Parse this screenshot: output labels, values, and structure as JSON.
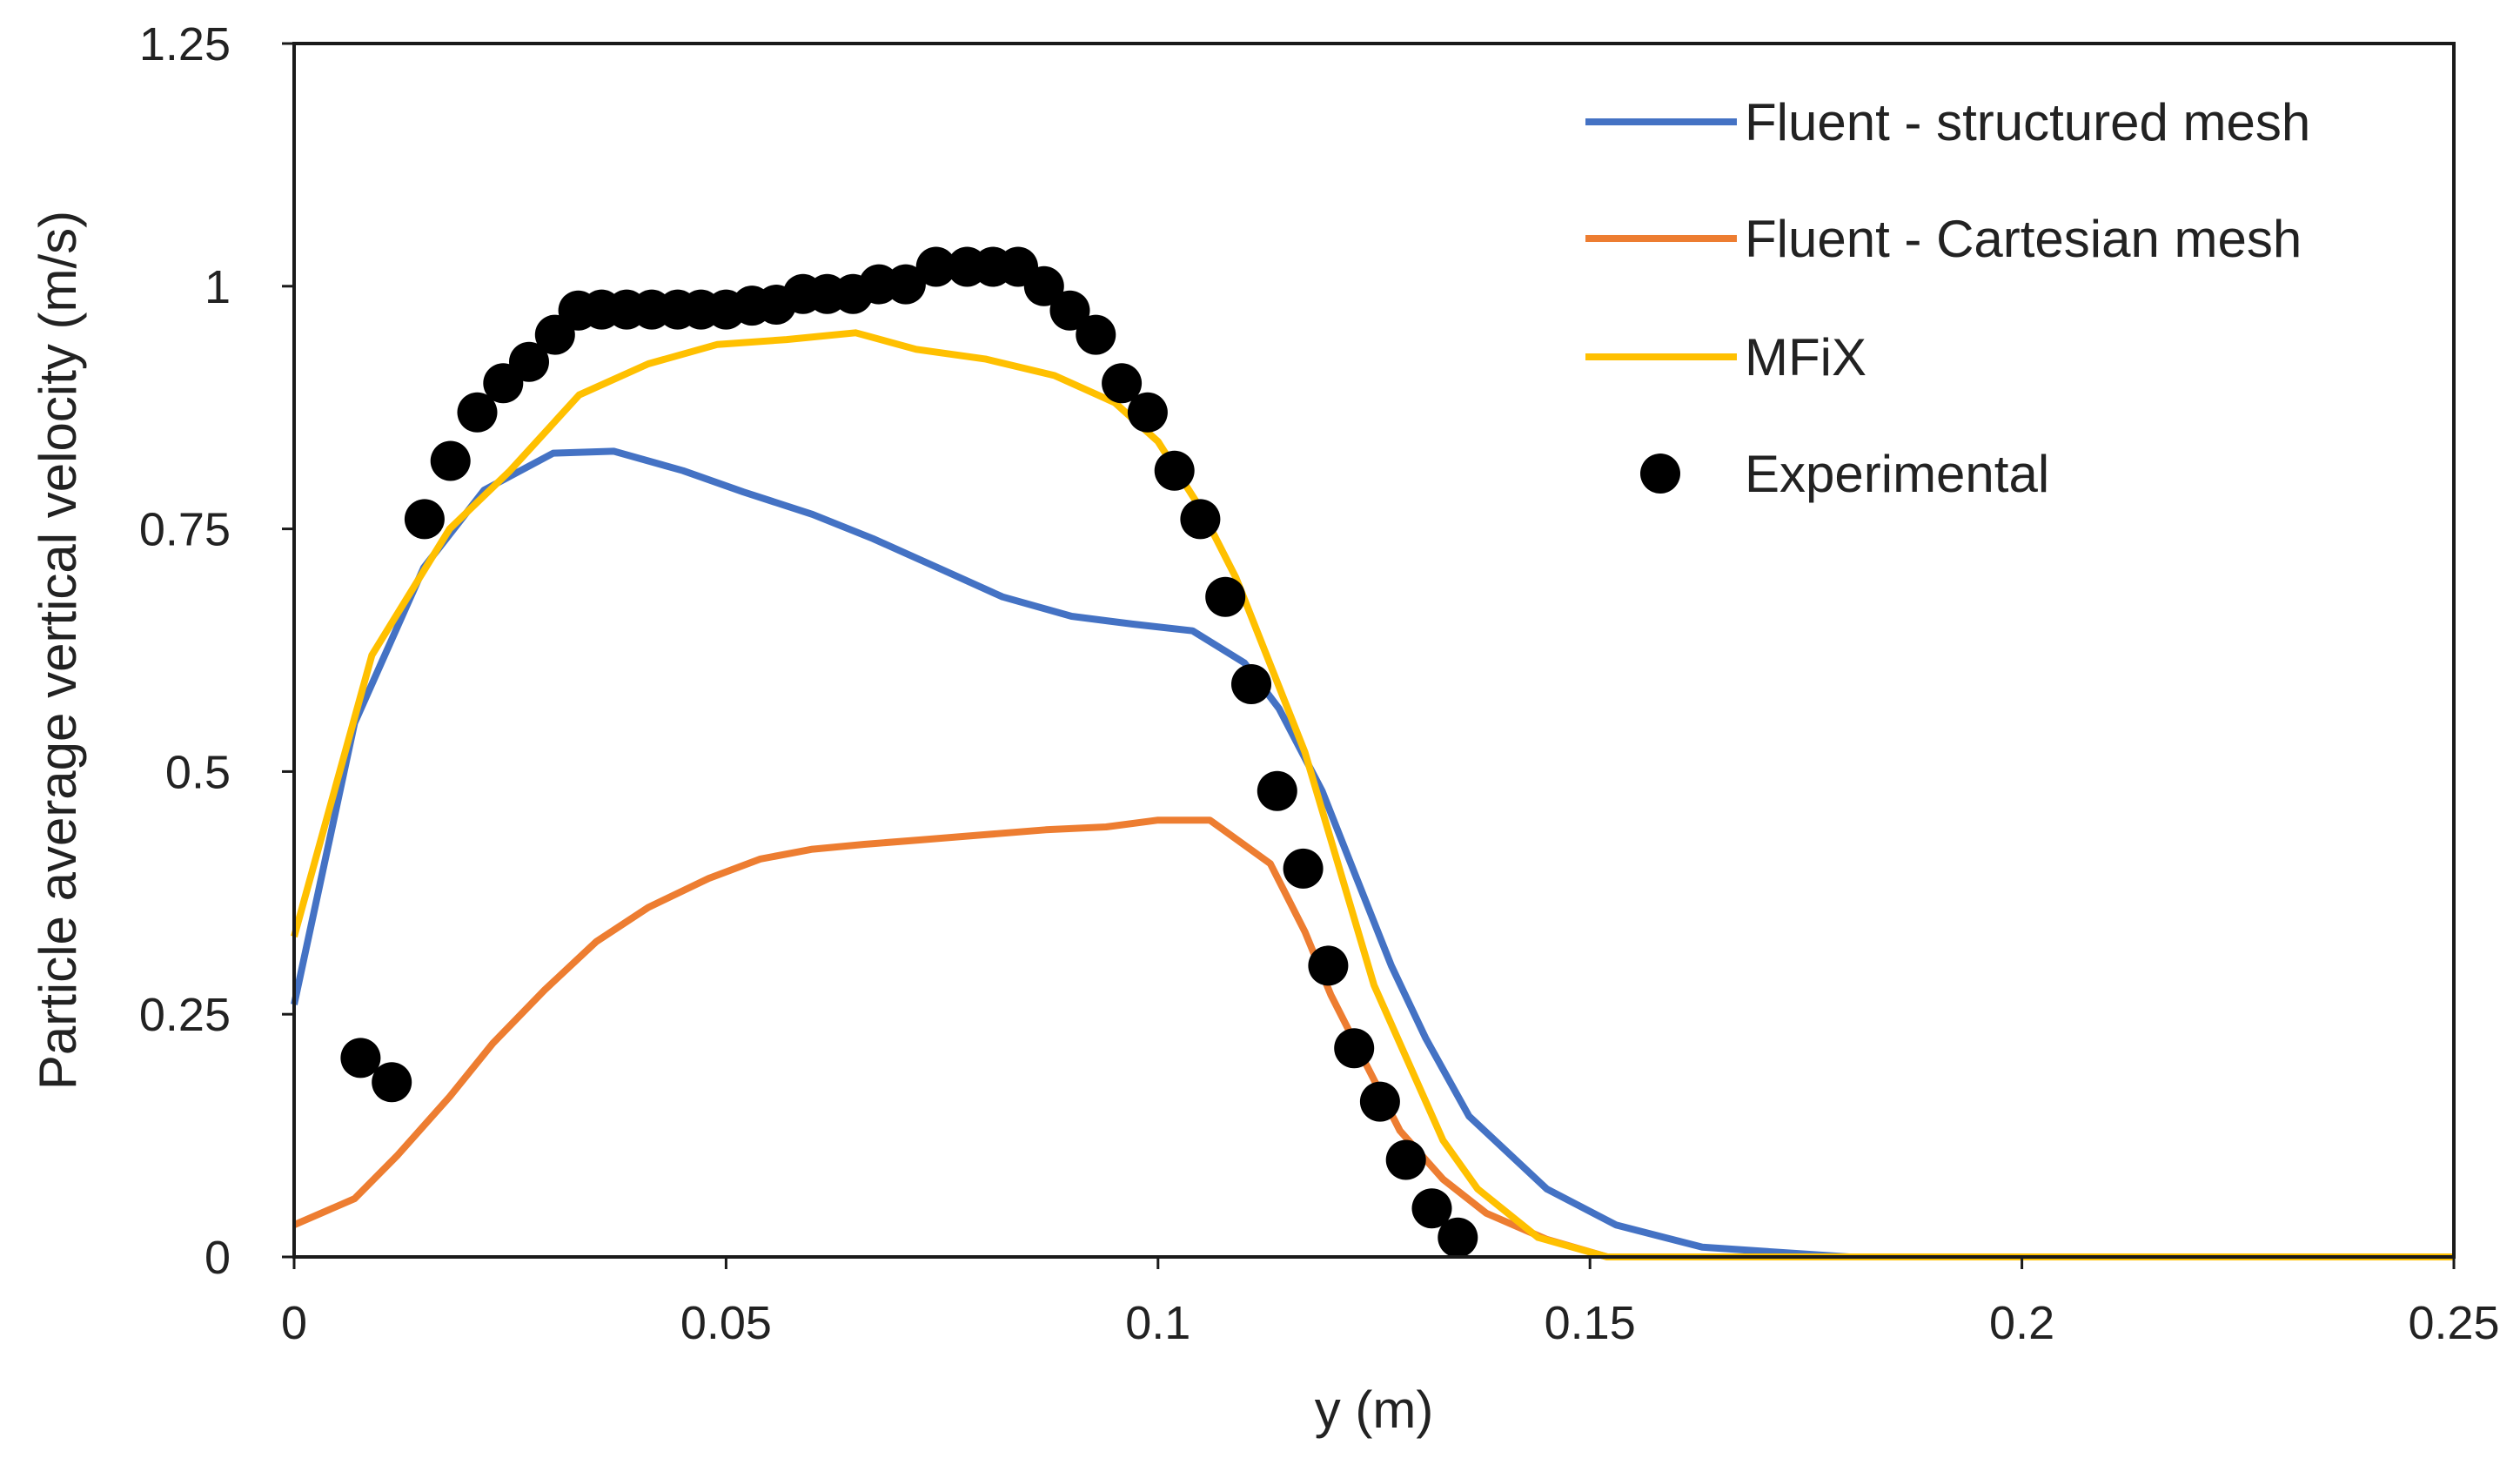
{
  "chart_data": {
    "type": "line",
    "title": "",
    "xlabel": "y (m)",
    "ylabel": "Particle average vertical velocity (m/s)",
    "xlim": [
      0,
      0.25
    ],
    "ylim": [
      0,
      1.25
    ],
    "grid": false,
    "legend_position": "top-right",
    "x_ticks": [
      0,
      0.05,
      0.1,
      0.15,
      0.2,
      0.25
    ],
    "x_tick_labels": [
      "0",
      "0.05",
      "0.1",
      "0.15",
      "0.2",
      "0.25"
    ],
    "y_ticks": [
      0,
      0.25,
      0.5,
      0.75,
      1,
      1.25
    ],
    "y_tick_labels": [
      "0",
      "0.25",
      "0.5",
      "0.75",
      "1",
      "1.25"
    ],
    "series": [
      {
        "name": "Fluent - structured mesh",
        "kind": "line",
        "color": "#4472C4",
        "points": [
          [
            0,
            0.26
          ],
          [
            0.007,
            0.55
          ],
          [
            0.015,
            0.71
          ],
          [
            0.022,
            0.79
          ],
          [
            0.03,
            0.828
          ],
          [
            0.037,
            0.83
          ],
          [
            0.045,
            0.81
          ],
          [
            0.052,
            0.788
          ],
          [
            0.06,
            0.765
          ],
          [
            0.067,
            0.74
          ],
          [
            0.075,
            0.708
          ],
          [
            0.082,
            0.68
          ],
          [
            0.09,
            0.66
          ],
          [
            0.097,
            0.652
          ],
          [
            0.104,
            0.645
          ],
          [
            0.11,
            0.612
          ],
          [
            0.114,
            0.565
          ],
          [
            0.119,
            0.48
          ],
          [
            0.123,
            0.39
          ],
          [
            0.127,
            0.3
          ],
          [
            0.131,
            0.225
          ],
          [
            0.136,
            0.145
          ],
          [
            0.145,
            0.07
          ],
          [
            0.153,
            0.033
          ],
          [
            0.163,
            0.01
          ],
          [
            0.18,
            0
          ],
          [
            0.2,
            0
          ],
          [
            0.25,
            0
          ]
        ]
      },
      {
        "name": "Fluent - Cartesian mesh",
        "kind": "line",
        "color": "#ED7D31",
        "points": [
          [
            0,
            0.033
          ],
          [
            0.007,
            0.06
          ],
          [
            0.012,
            0.105
          ],
          [
            0.018,
            0.165
          ],
          [
            0.023,
            0.22
          ],
          [
            0.029,
            0.275
          ],
          [
            0.035,
            0.325
          ],
          [
            0.041,
            0.36
          ],
          [
            0.048,
            0.39
          ],
          [
            0.054,
            0.41
          ],
          [
            0.06,
            0.42
          ],
          [
            0.066,
            0.425
          ],
          [
            0.073,
            0.43
          ],
          [
            0.08,
            0.435
          ],
          [
            0.087,
            0.44
          ],
          [
            0.094,
            0.443
          ],
          [
            0.1,
            0.45
          ],
          [
            0.106,
            0.45
          ],
          [
            0.113,
            0.405
          ],
          [
            0.117,
            0.335
          ],
          [
            0.12,
            0.27
          ],
          [
            0.124,
            0.2
          ],
          [
            0.128,
            0.13
          ],
          [
            0.133,
            0.08
          ],
          [
            0.138,
            0.045
          ],
          [
            0.145,
            0.018
          ],
          [
            0.152,
            0
          ],
          [
            0.2,
            0
          ],
          [
            0.25,
            0
          ]
        ]
      },
      {
        "name": "MFiX",
        "kind": "line",
        "color": "#FFC000",
        "points": [
          [
            0,
            0.33
          ],
          [
            0.009,
            0.62
          ],
          [
            0.018,
            0.75
          ],
          [
            0.025,
            0.81
          ],
          [
            0.033,
            0.888
          ],
          [
            0.041,
            0.92
          ],
          [
            0.049,
            0.94
          ],
          [
            0.057,
            0.945
          ],
          [
            0.065,
            0.952
          ],
          [
            0.072,
            0.935
          ],
          [
            0.08,
            0.925
          ],
          [
            0.088,
            0.908
          ],
          [
            0.095,
            0.88
          ],
          [
            0.1,
            0.84
          ],
          [
            0.105,
            0.77
          ],
          [
            0.109,
            0.7
          ],
          [
            0.113,
            0.61
          ],
          [
            0.117,
            0.52
          ],
          [
            0.121,
            0.4
          ],
          [
            0.125,
            0.28
          ],
          [
            0.129,
            0.2
          ],
          [
            0.133,
            0.12
          ],
          [
            0.137,
            0.07
          ],
          [
            0.144,
            0.02
          ],
          [
            0.152,
            0
          ],
          [
            0.2,
            0
          ],
          [
            0.25,
            0
          ]
        ]
      },
      {
        "name": "Experimental",
        "kind": "scatter",
        "color": "#000000",
        "points": [
          [
            0.0077,
            0.205
          ],
          [
            0.0113,
            0.18
          ],
          [
            0.0151,
            0.76
          ],
          [
            0.0181,
            0.82
          ],
          [
            0.0212,
            0.87
          ],
          [
            0.0242,
            0.9
          ],
          [
            0.0272,
            0.922
          ],
          [
            0.0302,
            0.95
          ],
          [
            0.0329,
            0.975
          ],
          [
            0.0356,
            0.976
          ],
          [
            0.0385,
            0.976
          ],
          [
            0.0414,
            0.976
          ],
          [
            0.0444,
            0.976
          ],
          [
            0.0471,
            0.976
          ],
          [
            0.05,
            0.976
          ],
          [
            0.053,
            0.98
          ],
          [
            0.0558,
            0.981
          ],
          [
            0.0589,
            0.992
          ],
          [
            0.0617,
            0.992
          ],
          [
            0.0647,
            0.992
          ],
          [
            0.0677,
            1.002
          ],
          [
            0.0708,
            1.002
          ],
          [
            0.0743,
            1.02
          ],
          [
            0.0779,
            1.02
          ],
          [
            0.0809,
            1.02
          ],
          [
            0.0838,
            1.02
          ],
          [
            0.0868,
            1.0
          ],
          [
            0.0898,
            0.975
          ],
          [
            0.0928,
            0.95
          ],
          [
            0.0958,
            0.9
          ],
          [
            0.0988,
            0.87
          ],
          [
            0.1019,
            0.81
          ],
          [
            0.1049,
            0.76
          ],
          [
            0.1078,
            0.68
          ],
          [
            0.1108,
            0.59
          ],
          [
            0.1138,
            0.48
          ],
          [
            0.1168,
            0.4
          ],
          [
            0.1197,
            0.3
          ],
          [
            0.1227,
            0.215
          ],
          [
            0.1257,
            0.16
          ],
          [
            0.1287,
            0.1
          ],
          [
            0.1317,
            0.05
          ],
          [
            0.1347,
            0.02
          ]
        ]
      }
    ]
  }
}
